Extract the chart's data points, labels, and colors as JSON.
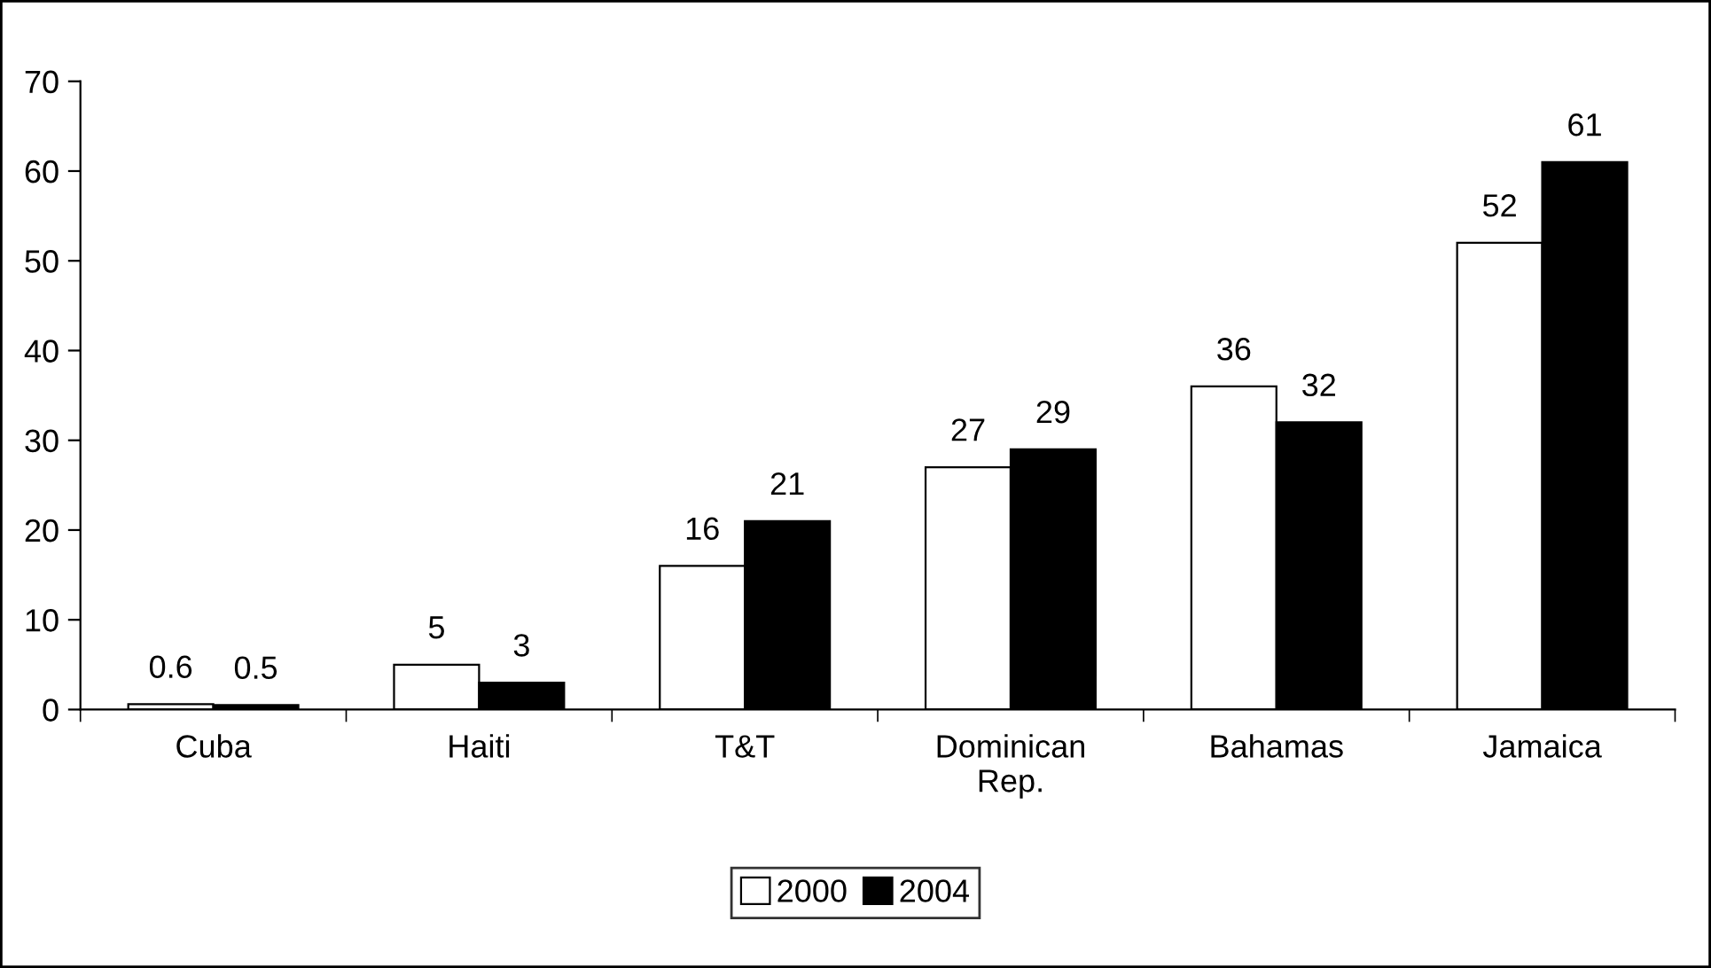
{
  "chart_data": {
    "type": "bar",
    "categories": [
      "Cuba",
      "Haiti",
      "T&T",
      "Dominican\nRep.",
      "Bahamas",
      "Jamaica"
    ],
    "series": [
      {
        "name": "2000",
        "color": "#ffffff",
        "values": [
          0.6,
          5,
          16,
          27,
          36,
          52
        ]
      },
      {
        "name": "2004",
        "color": "#000000",
        "values": [
          0.5,
          3,
          21,
          29,
          32,
          61
        ]
      }
    ],
    "ylim": [
      0,
      70
    ],
    "yticks": [
      0,
      10,
      20,
      30,
      40,
      50,
      60,
      70
    ],
    "grid": false,
    "legend": "bottom",
    "data_labels": true
  }
}
